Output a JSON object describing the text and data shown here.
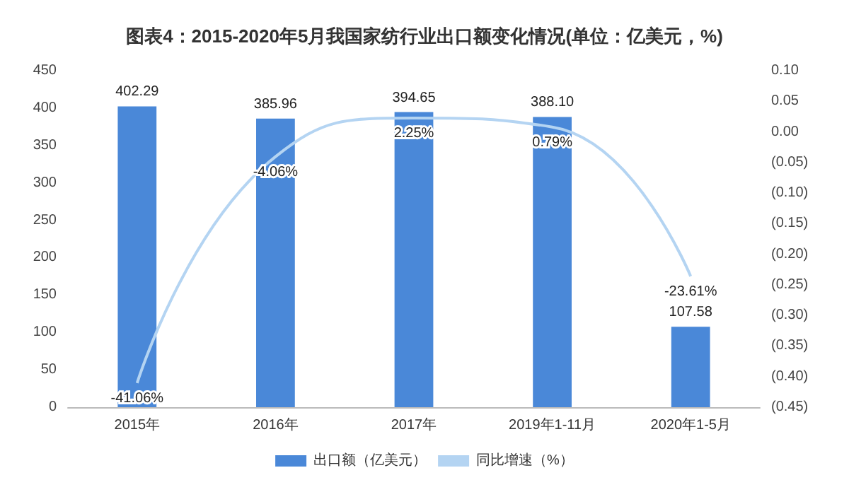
{
  "chart_data": {
    "type": "bar",
    "title": "图表4：2015-2020年5月我国家纺行业出口额变化情况(单位：亿美元，%)",
    "categories": [
      "2015年",
      "2016年",
      "2017年",
      "2019年1-11月",
      "2020年1-5月"
    ],
    "series": [
      {
        "name": "出口额（亿美元）",
        "color": "#4a88d8",
        "values": [
          402.29,
          385.96,
          394.65,
          388.1,
          107.58
        ],
        "value_labels": [
          "402.29",
          "385.96",
          "394.65",
          "388.10",
          "107.58"
        ]
      },
      {
        "name": "同比增速（%）",
        "type": "line",
        "axis": "y2",
        "color": "#b4d4f2",
        "marker": "none",
        "values": [
          -0.4106,
          -0.0406,
          0.0225,
          0.0079,
          -0.2361
        ],
        "value_labels": [
          "-41.06%",
          "-4.06%",
          "2.25%",
          "0.79%",
          "-23.61%"
        ]
      }
    ],
    "ylim": [
      0,
      450
    ],
    "yticks": [
      0,
      50,
      100,
      150,
      200,
      250,
      300,
      350,
      400,
      450
    ],
    "y2lim": [
      -0.45,
      0.1
    ],
    "y2ticks": [
      {
        "value": 0.1,
        "label": "0.10"
      },
      {
        "value": 0.05,
        "label": "0.05"
      },
      {
        "value": 0,
        "label": "0.00"
      },
      {
        "value": -0.05,
        "label": "(0.05)"
      },
      {
        "value": -0.1,
        "label": "(0.10)"
      },
      {
        "value": -0.15,
        "label": "(0.15)"
      },
      {
        "value": -0.2,
        "label": "(0.20)"
      },
      {
        "value": -0.25,
        "label": "(0.25)"
      },
      {
        "value": -0.3,
        "label": "(0.30)"
      },
      {
        "value": -0.35,
        "label": "(0.35)"
      },
      {
        "value": -0.4,
        "label": "(0.40)"
      },
      {
        "value": -0.45,
        "label": "(0.45)"
      }
    ],
    "legend": "bottom"
  }
}
